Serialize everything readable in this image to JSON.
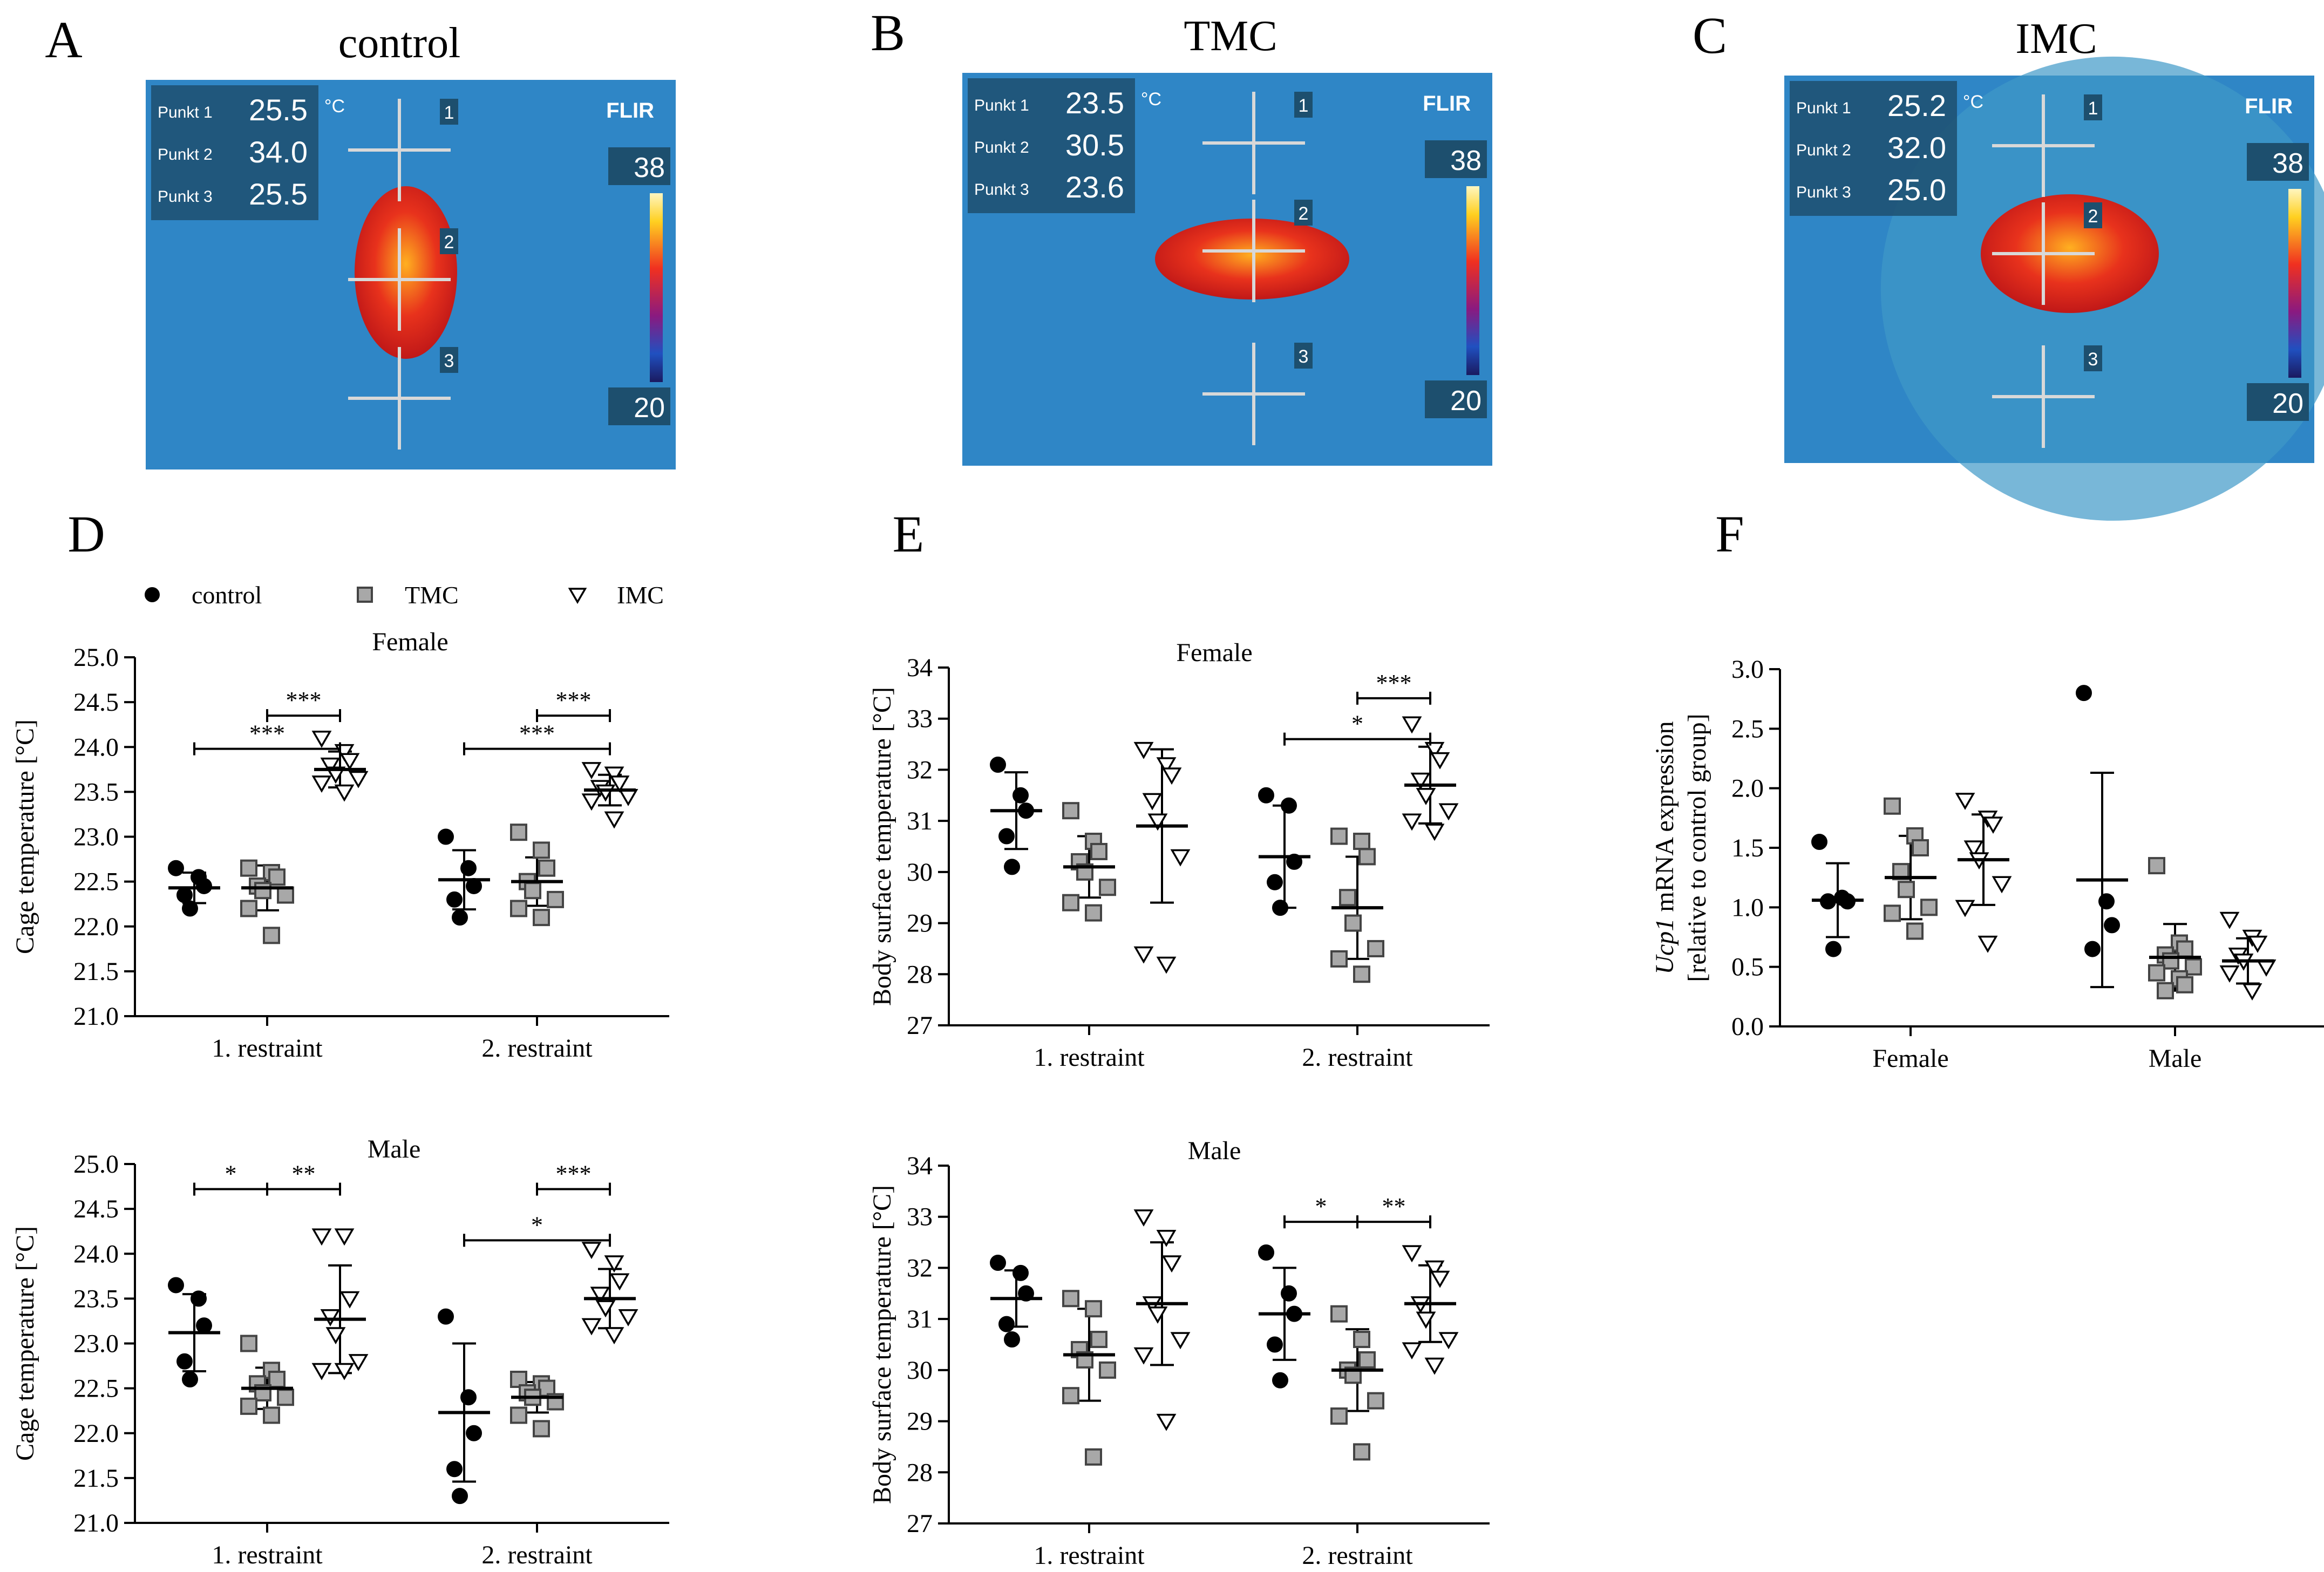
{
  "legend": [
    {
      "label": "control",
      "marker": "circle",
      "fill": "#000000"
    },
    {
      "label": "TMC",
      "marker": "square",
      "fill": "#a8a8a8"
    },
    {
      "label": "IMC",
      "marker": "triangle",
      "fill": "#ffffff"
    }
  ],
  "colors": {
    "thermal_bg": "#2f86c6",
    "mouse": "#e8321c",
    "mouse_core": "#ffb020",
    "panel_text": "#ffffff"
  },
  "photos": [
    {
      "letter": "A",
      "title": "control",
      "spots": [
        {
          "label": "Punkt 1",
          "value": "25.5"
        },
        {
          "label": "Punkt 2",
          "value": "34.0"
        },
        {
          "label": "Punkt 3",
          "value": "25.5"
        }
      ],
      "unit": "°C",
      "brand": "FLIR",
      "scale_max": "38",
      "scale_min": "20",
      "markers": [
        "1",
        "2",
        "3"
      ]
    },
    {
      "letter": "B",
      "title": "TMC",
      "spots": [
        {
          "label": "Punkt 1",
          "value": "23.5"
        },
        {
          "label": "Punkt 2",
          "value": "30.5"
        },
        {
          "label": "Punkt 3",
          "value": "23.6"
        }
      ],
      "unit": "°C",
      "brand": "FLIR",
      "scale_max": "38",
      "scale_min": "20",
      "markers": [
        "1",
        "2",
        "3"
      ]
    },
    {
      "letter": "C",
      "title": "IMC",
      "spots": [
        {
          "label": "Punkt 1",
          "value": "25.2"
        },
        {
          "label": "Punkt 2",
          "value": "32.0"
        },
        {
          "label": "Punkt 3",
          "value": "25.0"
        }
      ],
      "unit": "°C",
      "brand": "FLIR",
      "scale_max": "38",
      "scale_min": "20",
      "markers": [
        "1",
        "2",
        "3"
      ]
    }
  ],
  "chart_data": [
    {
      "id": "D-female",
      "letter": "D",
      "type": "scatter",
      "title": "Female",
      "ylabel": "Cage temperature [°C]",
      "ylim": [
        21.0,
        25.0
      ],
      "yticks": [
        "21.0",
        "21.5",
        "22.0",
        "22.5",
        "23.0",
        "23.5",
        "24.0",
        "24.5",
        "25.0"
      ],
      "categories": [
        "1. restraint",
        "2. restraint"
      ],
      "series": [
        {
          "name": "control",
          "groups": [
            {
              "values": [
                22.65,
                22.55,
                22.45,
                22.35,
                22.2
              ],
              "mean": 22.43,
              "sd": 0.17
            },
            {
              "values": [
                23.0,
                22.65,
                22.45,
                22.3,
                22.1
              ],
              "mean": 22.52,
              "sd": 0.33
            }
          ]
        },
        {
          "name": "TMC",
          "groups": [
            {
              "values": [
                22.65,
                22.6,
                22.55,
                22.45,
                22.4,
                22.35,
                22.2,
                21.9
              ],
              "mean": 22.43,
              "sd": 0.25
            },
            {
              "values": [
                23.05,
                22.85,
                22.65,
                22.5,
                22.4,
                22.3,
                22.2,
                22.1
              ],
              "mean": 22.5,
              "sd": 0.27
            }
          ]
        },
        {
          "name": "IMC",
          "groups": [
            {
              "values": [
                24.1,
                23.95,
                23.85,
                23.8,
                23.7,
                23.65,
                23.6,
                23.5
              ],
              "mean": 23.75,
              "sd": 0.2
            },
            {
              "values": [
                23.75,
                23.7,
                23.6,
                23.55,
                23.5,
                23.45,
                23.4,
                23.2
              ],
              "mean": 23.52,
              "sd": 0.17
            }
          ]
        }
      ],
      "brackets": [
        {
          "group": 0,
          "from": 1,
          "to": 2,
          "y": 24.35,
          "label": "***"
        },
        {
          "group": 0,
          "from": 0,
          "to": 2,
          "y": 23.98,
          "label": "***"
        },
        {
          "group": 1,
          "from": 1,
          "to": 2,
          "y": 24.35,
          "label": "***"
        },
        {
          "group": 1,
          "from": 0,
          "to": 2,
          "y": 23.98,
          "label": "***"
        }
      ]
    },
    {
      "id": "D-male",
      "letter": "",
      "type": "scatter",
      "title": "Male",
      "ylabel": "Cage temperature [°C]",
      "ylim": [
        21.0,
        25.0
      ],
      "yticks": [
        "21.0",
        "21.5",
        "22.0",
        "22.5",
        "23.0",
        "23.5",
        "24.0",
        "24.5",
        "25.0"
      ],
      "categories": [
        "1. restraint",
        "2. restraint"
      ],
      "series": [
        {
          "name": "control",
          "groups": [
            {
              "values": [
                23.65,
                23.5,
                23.2,
                22.8,
                22.6
              ],
              "mean": 23.12,
              "sd": 0.43
            },
            {
              "values": [
                23.3,
                22.4,
                22.0,
                21.6,
                21.3
              ],
              "mean": 22.23,
              "sd": 0.77
            }
          ]
        },
        {
          "name": "TMC",
          "groups": [
            {
              "values": [
                23.0,
                22.7,
                22.6,
                22.55,
                22.45,
                22.4,
                22.3,
                22.2
              ],
              "mean": 22.5,
              "sd": 0.23
            },
            {
              "values": [
                22.6,
                22.55,
                22.5,
                22.45,
                22.4,
                22.35,
                22.2,
                22.05
              ],
              "mean": 22.4,
              "sd": 0.17
            }
          ]
        },
        {
          "name": "IMC",
          "groups": [
            {
              "values": [
                24.2,
                24.2,
                23.5,
                23.3,
                23.1,
                22.8,
                22.7,
                22.7
              ],
              "mean": 23.27,
              "sd": 0.6
            },
            {
              "values": [
                24.05,
                23.9,
                23.7,
                23.55,
                23.4,
                23.3,
                23.2,
                23.1
              ],
              "mean": 23.5,
              "sd": 0.33
            }
          ]
        }
      ],
      "brackets": [
        {
          "group": 0,
          "from": 0,
          "to": 1,
          "y": 24.72,
          "label": "*"
        },
        {
          "group": 0,
          "from": 1,
          "to": 2,
          "y": 24.72,
          "label": "**"
        },
        {
          "group": 1,
          "from": 1,
          "to": 2,
          "y": 24.72,
          "label": "***"
        },
        {
          "group": 1,
          "from": 0,
          "to": 2,
          "y": 24.15,
          "label": "*"
        }
      ]
    },
    {
      "id": "E-female",
      "letter": "E",
      "type": "scatter",
      "title": "Female",
      "ylabel": "Body surface temperature [°C]",
      "ylim": [
        27,
        34
      ],
      "yticks": [
        "27",
        "28",
        "29",
        "30",
        "31",
        "32",
        "33",
        "34"
      ],
      "categories": [
        "1. restraint",
        "2. restraint"
      ],
      "series": [
        {
          "name": "control",
          "groups": [
            {
              "values": [
                32.1,
                31.5,
                31.2,
                30.7,
                30.1
              ],
              "mean": 31.2,
              "sd": 0.75
            },
            {
              "values": [
                31.5,
                31.3,
                30.2,
                29.8,
                29.3
              ],
              "mean": 30.3,
              "sd": 1.0
            }
          ]
        },
        {
          "name": "TMC",
          "groups": [
            {
              "values": [
                31.2,
                30.6,
                30.4,
                30.2,
                30.0,
                29.7,
                29.4,
                29.2
              ],
              "mean": 30.1,
              "sd": 0.6
            },
            {
              "values": [
                30.7,
                30.6,
                30.3,
                29.5,
                29.0,
                28.5,
                28.3,
                28.0
              ],
              "mean": 29.3,
              "sd": 1.0
            }
          ]
        },
        {
          "name": "IMC",
          "groups": [
            {
              "values": [
                32.4,
                32.1,
                31.9,
                31.4,
                31.0,
                30.3,
                28.4,
                28.2
              ],
              "mean": 30.9,
              "sd": 1.5
            },
            {
              "values": [
                32.9,
                32.4,
                32.2,
                31.8,
                31.5,
                31.2,
                31.0,
                30.8
              ],
              "mean": 31.7,
              "sd": 0.75
            }
          ]
        }
      ],
      "brackets": [
        {
          "group": 1,
          "from": 1,
          "to": 2,
          "y": 33.4,
          "label": "***"
        },
        {
          "group": 1,
          "from": 0,
          "to": 2,
          "y": 32.6,
          "label": "*"
        }
      ]
    },
    {
      "id": "E-male",
      "letter": "",
      "type": "scatter",
      "title": "Male",
      "ylabel": "Body surface temperature [°C]",
      "ylim": [
        27,
        34
      ],
      "yticks": [
        "27",
        "28",
        "29",
        "30",
        "31",
        "32",
        "33",
        "34"
      ],
      "categories": [
        "1. restraint",
        "2. restraint"
      ],
      "series": [
        {
          "name": "control",
          "groups": [
            {
              "values": [
                32.1,
                31.9,
                31.5,
                30.9,
                30.6
              ],
              "mean": 31.4,
              "sd": 0.55
            },
            {
              "values": [
                32.3,
                31.5,
                31.1,
                30.5,
                29.8
              ],
              "mean": 31.1,
              "sd": 0.9
            }
          ]
        },
        {
          "name": "TMC",
          "groups": [
            {
              "values": [
                31.4,
                31.2,
                30.6,
                30.4,
                30.2,
                30.0,
                29.5,
                28.3
              ],
              "mean": 30.3,
              "sd": 0.9
            },
            {
              "values": [
                31.1,
                30.6,
                30.2,
                30.0,
                29.9,
                29.4,
                29.1,
                28.4
              ],
              "mean": 30.0,
              "sd": 0.8
            }
          ]
        },
        {
          "name": "IMC",
          "groups": [
            {
              "values": [
                33.0,
                32.6,
                32.1,
                31.3,
                31.1,
                30.6,
                30.3,
                29.0
              ],
              "mean": 31.3,
              "sd": 1.2
            },
            {
              "values": [
                32.3,
                32.0,
                31.8,
                31.3,
                31.0,
                30.6,
                30.4,
                30.1
              ],
              "mean": 31.3,
              "sd": 0.75
            }
          ]
        }
      ],
      "brackets": [
        {
          "group": 1,
          "from": 0,
          "to": 1,
          "y": 32.9,
          "label": "*"
        },
        {
          "group": 1,
          "from": 1,
          "to": 2,
          "y": 32.9,
          "label": "**"
        }
      ]
    },
    {
      "id": "F",
      "letter": "F",
      "type": "scatter",
      "title": "",
      "ylabel_italic": "Ucp1",
      "ylabel": " mRNA expression",
      "ylabel2": "[relative to control group]",
      "ylim": [
        0.0,
        3.0
      ],
      "yticks": [
        "0.0",
        "0.5",
        "1.0",
        "1.5",
        "2.0",
        "2.5",
        "3.0"
      ],
      "categories": [
        "Female",
        "Male"
      ],
      "series": [
        {
          "name": "control",
          "groups": [
            {
              "values": [
                1.55,
                1.08,
                1.05,
                1.05,
                0.65
              ],
              "mean": 1.06,
              "sd": 0.31
            },
            {
              "values": [
                2.8,
                1.05,
                0.85,
                0.65
              ],
              "mean": 1.23,
              "sd": 0.9
            }
          ]
        },
        {
          "name": "TMC",
          "groups": [
            {
              "values": [
                1.85,
                1.6,
                1.5,
                1.3,
                1.15,
                1.0,
                0.95,
                0.8
              ],
              "mean": 1.25,
              "sd": 0.35
            },
            {
              "values": [
                1.35,
                0.7,
                0.65,
                0.6,
                0.55,
                0.5,
                0.45,
                0.4,
                0.35,
                0.3
              ],
              "mean": 0.58,
              "sd": 0.28
            }
          ]
        },
        {
          "name": "IMC",
          "groups": [
            {
              "values": [
                1.9,
                1.75,
                1.7,
                1.5,
                1.4,
                1.2,
                1.0,
                0.7
              ],
              "mean": 1.4,
              "sd": 0.38
            },
            {
              "values": [
                0.9,
                0.75,
                0.7,
                0.6,
                0.55,
                0.5,
                0.45,
                0.3
              ],
              "mean": 0.55,
              "sd": 0.19
            }
          ]
        }
      ],
      "brackets": []
    }
  ]
}
